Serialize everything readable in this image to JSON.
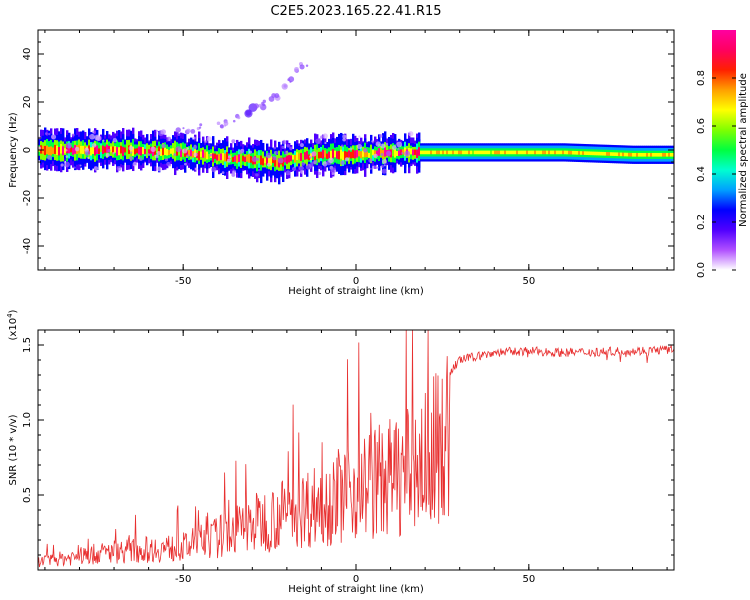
{
  "chart_data": [
    {
      "type": "heatmap",
      "title": "C2E5.2023.165.22.41.R15",
      "xlabel": "Height of straight line (km)",
      "ylabel": "Frequency (Hz)",
      "xlim": [
        -92,
        92
      ],
      "ylim": [
        -50,
        50
      ],
      "xticks": [
        -50,
        0,
        50
      ],
      "yticks": [
        -40,
        -20,
        0,
        20,
        40
      ],
      "colorbar": {
        "label": "Normalized spectral amplitude",
        "range": [
          0.0,
          1.0
        ],
        "ticks": [
          "0.0",
          "0.2",
          "0.4",
          "0.6",
          "0.8"
        ],
        "tick_values": [
          0.0,
          0.2,
          0.4,
          0.6,
          0.8
        ],
        "colors": [
          "#ffffff",
          "#b050ff",
          "#5000ff",
          "#0000ff",
          "#00a0ff",
          "#00ffd0",
          "#00ff40",
          "#80ff00",
          "#ffff00",
          "#ffa000",
          "#ff2000",
          "#ff0060",
          "#ff00a0"
        ]
      },
      "ridge": {
        "x": [
          -92,
          -70,
          -50,
          -40,
          -30,
          -22,
          -17,
          -10,
          0,
          10,
          20,
          40,
          60,
          80,
          92
        ],
        "freq": [
          0,
          0,
          -1,
          -3,
          -4,
          -5,
          -3,
          -2,
          -2,
          -1,
          -1,
          -1,
          -1,
          -2,
          -2
        ]
      },
      "drift": {
        "x": [
          -58,
          -50,
          -40,
          -31,
          -23,
          -15
        ],
        "freq": [
          7,
          8,
          10,
          16,
          22,
          36
        ]
      }
    },
    {
      "type": "line",
      "title": "",
      "xlabel": "Height of straight line (km)",
      "ylabel": "SNR (10 * v/v)",
      "multiplier": "(x10",
      "multiplier_exp": "4",
      "multiplier_close": ")",
      "xlim": [
        -92,
        92
      ],
      "ylim": [
        0,
        1.6
      ],
      "xticks": [
        -50,
        0,
        50
      ],
      "yticks": [
        0.5,
        1.0,
        1.5
      ],
      "ytick_labels": [
        "0.5",
        "1.0",
        "1.5"
      ],
      "color": "#e83030",
      "envelope": {
        "x": [
          -92,
          -70,
          -50,
          -40,
          -30,
          -25,
          -20,
          -10,
          0,
          10,
          15,
          20,
          25,
          30,
          40,
          50,
          60,
          80,
          92
        ],
        "y": [
          0.08,
          0.18,
          0.22,
          0.32,
          0.45,
          0.5,
          0.55,
          0.65,
          0.8,
          0.9,
          0.95,
          1.05,
          1.25,
          1.4,
          1.45,
          1.46,
          1.45,
          1.46,
          1.47
        ]
      }
    }
  ]
}
